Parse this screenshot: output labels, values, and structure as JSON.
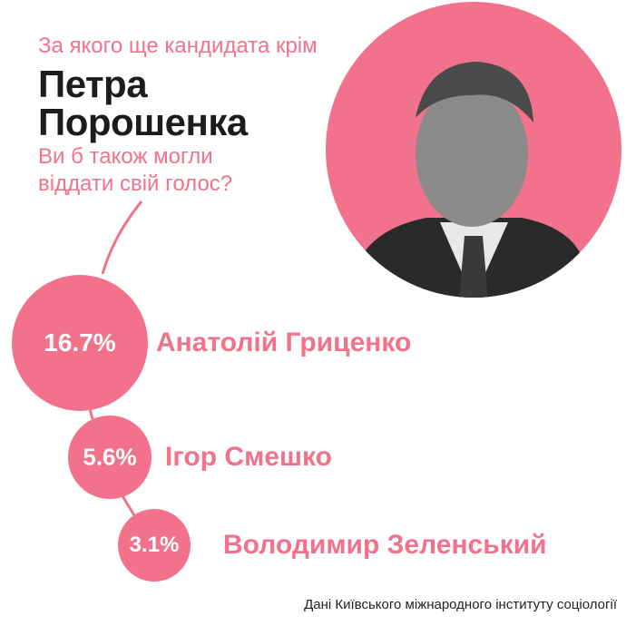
{
  "header": {
    "question_line1": "За якого ще кандидата крім",
    "name_line1": "Петра",
    "name_line2": "Порошенка",
    "question_line2": "Ви б також могли",
    "question_line3": "віддати свій голос?"
  },
  "colors": {
    "accent": "#f2728b",
    "text": "#1c1c1c"
  },
  "photo": {
    "icon": "portrait-photo"
  },
  "chart_data": {
    "type": "bubble",
    "categories": [
      "Анатолій Гриценко",
      "Ігор Смешко",
      "Володимир Зеленський"
    ],
    "values": [
      16.7,
      5.6,
      3.1
    ],
    "labels": [
      "16.7%",
      "5.6%",
      "3.1%"
    ],
    "unit": "%"
  },
  "source": "Дані Київського міжнародного інституту соціології"
}
